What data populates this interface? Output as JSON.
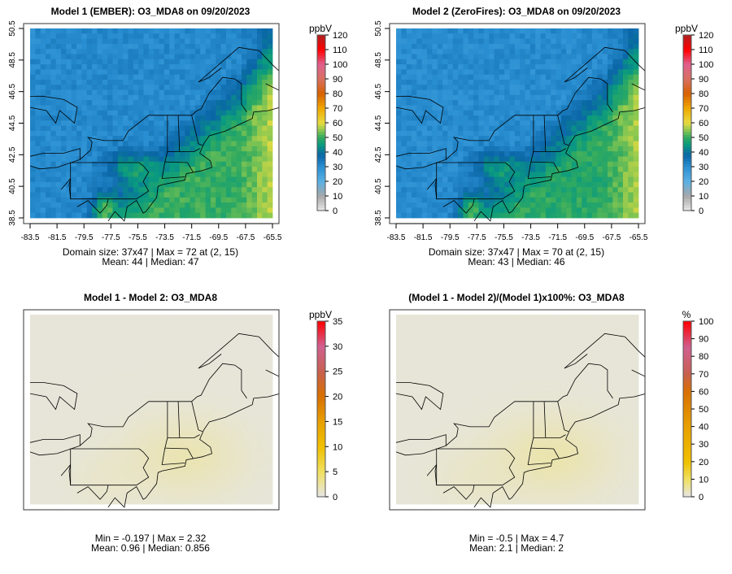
{
  "panels": [
    {
      "title": "Model 1 (EMBER): O3_MDA8 on 09/20/2023",
      "stat1": "Domain size: 37x47 | Max = 72 at (2, 15)",
      "stat2": "Mean: 44 |  Median: 47",
      "unit": "ppbV",
      "field": "model1",
      "scale": "ppb",
      "axes": true
    },
    {
      "title": "Model 2 (ZeroFires): O3_MDA8 on 09/20/2023",
      "stat1": "Domain size: 37x47 | Max = 70 at (2, 15)",
      "stat2": "Mean: 43 |  Median: 46",
      "unit": "ppbV",
      "field": "model2",
      "scale": "ppb",
      "axes": true
    },
    {
      "title": "Model 1 - Model 2: O3_MDA8",
      "stat1": "Min = -0.197 | Max = 2.32",
      "stat2": "Mean: 0.96 |  Median: 0.856",
      "unit": "ppbV",
      "field": "diff",
      "scale": "diff",
      "axes": false
    },
    {
      "title": "(Model 1 - Model 2)/(Model 1)x100%: O3_MDA8",
      "stat1": "Min = -0.5 | Max = 4.7",
      "stat2": "Mean: 2.1 |  Median: 2",
      "unit": "%",
      "field": "pct",
      "scale": "pct",
      "axes": false
    }
  ],
  "axes": {
    "x_ticks": [
      "-83.5",
      "-81.5",
      "-79.5",
      "-77.5",
      "-75.5",
      "-73.5",
      "-71.5",
      "-69.5",
      "-67.5",
      "-65.5"
    ],
    "y_ticks": [
      "38.5",
      "40.5",
      "42.5",
      "44.5",
      "46.5",
      "48.5",
      "50.5"
    ],
    "lon_range": [
      -83.5,
      -65.5
    ],
    "lat_range": [
      38.5,
      50.5
    ]
  },
  "colorbars": {
    "ppb": {
      "ticks": [
        "0",
        "10",
        "20",
        "30",
        "40",
        "50",
        "60",
        "70",
        "80",
        "90",
        "100",
        "110",
        "120"
      ],
      "range": [
        0,
        120
      ],
      "stops": [
        [
          0,
          "#e8e8e8"
        ],
        [
          10,
          "#a8a8a8"
        ],
        [
          20,
          "#5ab0e4"
        ],
        [
          30,
          "#2a8fd2"
        ],
        [
          38,
          "#0a66a6"
        ],
        [
          45,
          "#0a9a80"
        ],
        [
          50,
          "#30aa60"
        ],
        [
          55,
          "#8cc850"
        ],
        [
          60,
          "#e8dc40"
        ],
        [
          70,
          "#f0a800"
        ],
        [
          80,
          "#d86000"
        ],
        [
          90,
          "#d87060"
        ],
        [
          100,
          "#e06090"
        ],
        [
          110,
          "#ff0000"
        ],
        [
          120,
          "#b02020"
        ]
      ]
    },
    "diff": {
      "ticks": [
        "0",
        "5",
        "10",
        "15",
        "20",
        "25",
        "30",
        "35"
      ],
      "range": [
        0,
        35
      ],
      "stops": [
        [
          0,
          "#e6e6e6"
        ],
        [
          5,
          "#f0e060"
        ],
        [
          10,
          "#f0c000"
        ],
        [
          15,
          "#e8a000"
        ],
        [
          20,
          "#d87000"
        ],
        [
          25,
          "#c86050"
        ],
        [
          30,
          "#d06090"
        ],
        [
          35,
          "#ff0000"
        ]
      ]
    },
    "pct": {
      "ticks": [
        "0",
        "10",
        "20",
        "30",
        "40",
        "50",
        "60",
        "70",
        "80",
        "90",
        "100"
      ],
      "range": [
        0,
        100
      ],
      "stops": [
        [
          0,
          "#e6e6e6"
        ],
        [
          10,
          "#f0e060"
        ],
        [
          20,
          "#f0c000"
        ],
        [
          40,
          "#e8a000"
        ],
        [
          60,
          "#d87000"
        ],
        [
          70,
          "#c86050"
        ],
        [
          85,
          "#d06090"
        ],
        [
          100,
          "#ff0000"
        ]
      ]
    }
  }
}
